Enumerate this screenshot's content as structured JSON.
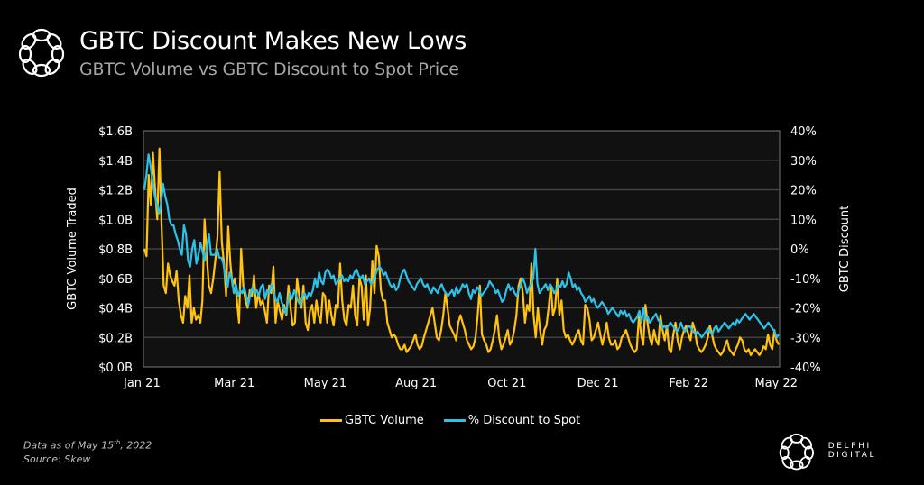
{
  "header": {
    "title": "GBTC Discount Makes New Lows",
    "subtitle": "GBTC Volume vs GBTC Discount to Spot Price"
  },
  "footer": {
    "date_prefix": "Data as of May 15",
    "date_sup": "th",
    "date_suffix": ", 2022",
    "source": "Source: Skew"
  },
  "brand": {
    "name": "DELPHI DIGITAL",
    "logo_icon": "delphi-knot-icon"
  },
  "colors": {
    "background": "#000000",
    "plot_background": "#111111",
    "gridline": "#4a4a4a",
    "volume": "#FFC20E",
    "discount": "#2CC1E8"
  },
  "chart_data": {
    "type": "line",
    "title": "GBTC Discount Makes New Lows",
    "subtitle": "GBTC Volume vs GBTC Discount to Spot Price",
    "xlabel": "",
    "ylabel": "GBTC Volume Traded",
    "y2label": "GBTC Discount",
    "x_tick_labels": [
      "Jan 21",
      "Mar 21",
      "May 21",
      "Aug 21",
      "Oct 21",
      "Dec 21",
      "Feb 22",
      "May 22"
    ],
    "y_tick_labels": [
      "$0.0B",
      "$0.2B",
      "$0.4B",
      "$0.6B",
      "$0.8B",
      "$1.0B",
      "$1.2B",
      "$1.4B",
      "$1.6B"
    ],
    "y2_tick_labels": [
      "-40%",
      "-30%",
      "-20%",
      "-10%",
      "0%",
      "10%",
      "20%",
      "30%",
      "40%"
    ],
    "ylim": [
      0,
      1.6
    ],
    "y2lim": [
      -40,
      40
    ],
    "grid": true,
    "legend_position": "bottom-center",
    "x_range": [
      "2021-01-01",
      "2022-05-15"
    ],
    "series": [
      {
        "name": "GBTC Volume",
        "axis": "left",
        "unit": "$B",
        "values": [
          0.8,
          0.75,
          1.3,
          1.1,
          1.45,
          1.2,
          1.0,
          1.48,
          0.95,
          0.55,
          0.5,
          0.7,
          0.62,
          0.58,
          0.55,
          0.65,
          0.45,
          0.35,
          0.3,
          0.48,
          0.4,
          0.62,
          0.3,
          0.4,
          0.32,
          0.35,
          0.3,
          0.45,
          1.0,
          0.75,
          0.55,
          0.5,
          0.6,
          0.72,
          0.88,
          1.32,
          0.85,
          0.7,
          0.48,
          0.95,
          0.7,
          0.55,
          0.6,
          0.45,
          0.3,
          0.8,
          0.55,
          0.45,
          0.4,
          0.52,
          0.48,
          0.62,
          0.4,
          0.5,
          0.42,
          0.45,
          0.38,
          0.3,
          0.55,
          0.5,
          0.68,
          0.3,
          0.45,
          0.38,
          0.32,
          0.42,
          0.35,
          0.55,
          0.4,
          0.28,
          0.3,
          0.6,
          0.48,
          0.4,
          0.55,
          0.3,
          0.25,
          0.38,
          0.42,
          0.3,
          0.45,
          0.35,
          0.3,
          0.5,
          0.48,
          0.3,
          0.45,
          0.35,
          0.28,
          0.42,
          0.4,
          0.7,
          0.45,
          0.32,
          0.28,
          0.42,
          0.4,
          0.55,
          0.35,
          0.28,
          0.6,
          0.55,
          0.32,
          0.62,
          0.28,
          0.4,
          0.72,
          0.5,
          0.82,
          0.75,
          0.52,
          0.45,
          0.45,
          0.3,
          0.25,
          0.2,
          0.22,
          0.2,
          0.15,
          0.12,
          0.12,
          0.15,
          0.1,
          0.12,
          0.14,
          0.18,
          0.22,
          0.15,
          0.12,
          0.14,
          0.2,
          0.25,
          0.3,
          0.35,
          0.4,
          0.3,
          0.2,
          0.18,
          0.25,
          0.35,
          0.5,
          0.4,
          0.28,
          0.25,
          0.22,
          0.18,
          0.3,
          0.35,
          0.3,
          0.25,
          0.18,
          0.15,
          0.12,
          0.14,
          0.2,
          0.35,
          0.55,
          0.22,
          0.18,
          0.15,
          0.1,
          0.12,
          0.18,
          0.25,
          0.35,
          0.2,
          0.12,
          0.15,
          0.2,
          0.25,
          0.15,
          0.18,
          0.25,
          0.35,
          0.55,
          0.6,
          0.5,
          0.3,
          0.42,
          0.38,
          0.7,
          0.35,
          0.2,
          0.4,
          0.25,
          0.15,
          0.25,
          0.28,
          0.4,
          0.55,
          0.35,
          0.4,
          0.6,
          0.35,
          0.45,
          0.25,
          0.2,
          0.22,
          0.18,
          0.15,
          0.18,
          0.22,
          0.25,
          0.18,
          0.15,
          0.42,
          0.4,
          0.32,
          0.18,
          0.2,
          0.25,
          0.3,
          0.22,
          0.15,
          0.22,
          0.3,
          0.2,
          0.15,
          0.15,
          0.18,
          0.12,
          0.14,
          0.2,
          0.22,
          0.25,
          0.2,
          0.15,
          0.12,
          0.1,
          0.12,
          0.35,
          0.22,
          0.15,
          0.42,
          0.3,
          0.2,
          0.15,
          0.25,
          0.18,
          0.15,
          0.35,
          0.25,
          0.18,
          0.28,
          0.12,
          0.1,
          0.22,
          0.3,
          0.18,
          0.12,
          0.2,
          0.25,
          0.28,
          0.22,
          0.18,
          0.3,
          0.25,
          0.15,
          0.12,
          0.1,
          0.12,
          0.15,
          0.2,
          0.28,
          0.22,
          0.15,
          0.12,
          0.1,
          0.08,
          0.1,
          0.14,
          0.18,
          0.12,
          0.1,
          0.08,
          0.12,
          0.15,
          0.2,
          0.18,
          0.12,
          0.1,
          0.12,
          0.08,
          0.1,
          0.12,
          0.1,
          0.08,
          0.1,
          0.14,
          0.12,
          0.22,
          0.15,
          0.12,
          0.25,
          0.18,
          0.15
        ]
      },
      {
        "name": "% Discount to Spot",
        "axis": "right",
        "unit": "%",
        "values": [
          20,
          25,
          32,
          28,
          22,
          18,
          15,
          12,
          15,
          22,
          18,
          15,
          10,
          8,
          8,
          5,
          3,
          0,
          -2,
          8,
          5,
          -4,
          -6,
          0,
          3,
          -5,
          -2,
          2,
          -1,
          -4,
          0,
          5,
          -2,
          -2,
          -2,
          0,
          -3,
          -3,
          -5,
          -10,
          -13,
          -8,
          -10,
          -15,
          -12,
          -16,
          -14,
          -15,
          -13,
          -16,
          -19,
          -15,
          -13,
          -15,
          -14,
          -16,
          -13,
          -12,
          -17,
          -14,
          -15,
          -12,
          -14,
          -17,
          -18,
          -15,
          -18,
          -20,
          -22,
          -18,
          -15,
          -17,
          -14,
          -16,
          -18,
          -19,
          -16,
          -15,
          -17,
          -15,
          -16,
          -14,
          -10,
          -13,
          -8,
          -11,
          -12,
          -8,
          -7,
          -8,
          -10,
          -9,
          -12,
          -11,
          -10,
          -9,
          -11,
          -10,
          -11,
          -9,
          -10,
          -8,
          -7,
          -9,
          -10,
          -9,
          -12,
          -11,
          -10,
          -12,
          -11,
          -9,
          -7,
          -6,
          -7,
          -9,
          -8,
          -10,
          -12,
          -13,
          -12,
          -14,
          -13,
          -10,
          -8,
          -7,
          -9,
          -11,
          -12,
          -13,
          -14,
          -12,
          -11,
          -10,
          -12,
          -13,
          -12,
          -14,
          -15,
          -13,
          -14,
          -15,
          -13,
          -12,
          -14,
          -15,
          -16,
          -15,
          -14,
          -16,
          -13,
          -15,
          -14,
          -12,
          -13,
          -12,
          -15,
          -17,
          -14,
          -15,
          -13,
          -14,
          -16,
          -15,
          -14,
          -13,
          -11,
          -12,
          -13,
          -15,
          -14,
          -16,
          -18,
          -17,
          -14,
          -12,
          -14,
          -13,
          -15,
          -16,
          -14,
          -12,
          -10,
          -12,
          -15,
          -13,
          -12,
          -10,
          0,
          -12,
          -15,
          -14,
          -13,
          -12,
          -14,
          -12,
          -13,
          -15,
          -14,
          -12,
          -13,
          -11,
          -13,
          -12,
          -8,
          -10,
          -13,
          -12,
          -14,
          -13,
          -15,
          -16,
          -18,
          -17,
          -16,
          -18,
          -17,
          -19,
          -20,
          -19,
          -18,
          -19,
          -20,
          -22,
          -21,
          -20,
          -21,
          -22,
          -23,
          -21,
          -22,
          -21,
          -23,
          -22,
          -24,
          -25,
          -24,
          -23,
          -21,
          -25,
          -20,
          -24,
          -23,
          -25,
          -24,
          -23,
          -22,
          -24,
          -25,
          -27,
          -26,
          -27,
          -26,
          -25,
          -26,
          -27,
          -28,
          -27,
          -25,
          -27,
          -28,
          -27,
          -26,
          -27,
          -28,
          -29,
          -28,
          -29,
          -30,
          -29,
          -28,
          -27,
          -28,
          -29,
          -27,
          -26,
          -28,
          -27,
          -26,
          -25,
          -26,
          -27,
          -26,
          -25,
          -26,
          -24,
          -25,
          -24,
          -23,
          -22,
          -23,
          -24,
          -23,
          -22,
          -23,
          -24,
          -25,
          -26,
          -27,
          -26,
          -25,
          -26,
          -27,
          -28,
          -30,
          -29
        ]
      }
    ]
  },
  "legend": [
    {
      "label": "GBTC Volume",
      "color": "#FFC20E"
    },
    {
      "label": "% Discount to Spot",
      "color": "#2CC1E8"
    }
  ]
}
